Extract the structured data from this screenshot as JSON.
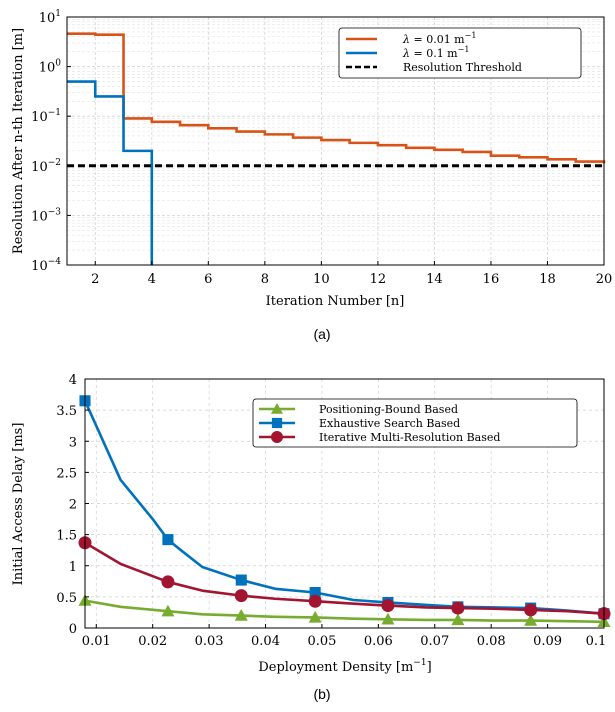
{
  "chart_data": [
    {
      "panel": "(a)",
      "type": "line",
      "step": true,
      "yscale": "log",
      "xlabel": "Iteration Number [n]",
      "ylabel": "Resolution After n-th Iteration [m]",
      "xlim": [
        1,
        20
      ],
      "ylim": [
        0.0001,
        10
      ],
      "xticks": [
        2,
        4,
        6,
        8,
        10,
        12,
        14,
        16,
        18,
        20
      ],
      "yticks": [
        {
          "value": 10,
          "base": "10",
          "exp": "1"
        },
        {
          "value": 1,
          "base": "10",
          "exp": "0"
        },
        {
          "value": 0.1,
          "base": "10",
          "exp": "−1"
        },
        {
          "value": 0.01,
          "base": "10",
          "exp": "−2"
        },
        {
          "value": 0.001,
          "base": "10",
          "exp": "−3"
        },
        {
          "value": 0.0001,
          "base": "10",
          "exp": "−4"
        }
      ],
      "grid": true,
      "legend_position": "top-right",
      "series": [
        {
          "name": "λ = 0.01 m⁻¹",
          "legend_parts": {
            "sym": "λ",
            "mid": " = 0.01 m",
            "sup": "−1"
          },
          "color": "#d95319",
          "x": [
            1,
            2,
            3,
            4,
            5,
            6,
            7,
            8,
            9,
            10,
            11,
            12,
            13,
            14,
            15,
            16,
            17,
            18,
            19,
            20
          ],
          "y": [
            4.6,
            4.4,
            0.09,
            0.077,
            0.066,
            0.057,
            0.049,
            0.043,
            0.037,
            0.033,
            0.029,
            0.026,
            0.023,
            0.021,
            0.019,
            0.016,
            0.0148,
            0.0135,
            0.0122,
            0.0112
          ]
        },
        {
          "name": "λ = 0.1 m⁻¹",
          "legend_parts": {
            "sym": "λ",
            "mid": " = 0.1 m",
            "sup": "−1"
          },
          "color": "#0072bd",
          "x": [
            1,
            2,
            3,
            4
          ],
          "y": [
            0.5,
            0.25,
            0.02,
            0.0001
          ]
        },
        {
          "name": "Resolution Threshold",
          "legend_parts": {
            "sym": "",
            "mid": "Resolution Threshold",
            "sup": ""
          },
          "color": "#000000",
          "dashed": true,
          "x": [
            1,
            20
          ],
          "y": [
            0.01,
            0.01
          ]
        }
      ],
      "caption": "(a)"
    },
    {
      "panel": "(b)",
      "type": "line",
      "xlabel": "Deployment Density [m⁻¹]",
      "xlabel_parts": {
        "main": "Deployment Density [m",
        "sup": "−1",
        "end": "]"
      },
      "ylabel": "Initial Access Delay [ms]",
      "xlim": [
        0.008,
        0.1
      ],
      "ylim": [
        0,
        4
      ],
      "xticks": [
        0.01,
        0.02,
        0.03,
        0.04,
        0.05,
        0.06,
        0.07,
        0.08,
        0.09,
        0.1
      ],
      "xtick_labels": [
        "0.01",
        "0.02",
        "0.03",
        "0.04",
        "0.05",
        "0.06",
        "0.07",
        "0.08",
        "0.09",
        "0.1"
      ],
      "yticks": [
        0,
        0.5,
        1,
        1.5,
        2,
        2.5,
        3,
        3.5,
        4
      ],
      "ytick_labels": [
        "0",
        "0.5",
        "1",
        "1.5",
        "2",
        "2.5",
        "3",
        "3.5",
        "4"
      ],
      "grid": true,
      "legend_position": "top-right",
      "series": [
        {
          "name": "Positioning-Bound Based",
          "color": "#77ac30",
          "marker": "triangle",
          "x": [
            0.008,
            0.0143,
            0.0227,
            0.0288,
            0.0357,
            0.0417,
            0.0488,
            0.0556,
            0.0617,
            0.0685,
            0.0741,
            0.0806,
            0.087,
            0.0935,
            0.1
          ],
          "y": [
            0.44,
            0.34,
            0.27,
            0.22,
            0.2,
            0.18,
            0.17,
            0.15,
            0.14,
            0.13,
            0.13,
            0.12,
            0.12,
            0.11,
            0.1
          ],
          "marker_x": [
            0.008,
            0.0227,
            0.0357,
            0.0488,
            0.0617,
            0.0741,
            0.087,
            0.1
          ]
        },
        {
          "name": "Exhaustive Search Based",
          "color": "#0072bd",
          "marker": "square",
          "x": [
            0.008,
            0.0143,
            0.02,
            0.0227,
            0.025,
            0.0288,
            0.0357,
            0.0417,
            0.0488,
            0.0556,
            0.0617,
            0.0685,
            0.0741,
            0.0806,
            0.087,
            0.0935,
            0.1
          ],
          "y": [
            3.65,
            2.38,
            1.75,
            1.42,
            1.25,
            0.98,
            0.77,
            0.63,
            0.57,
            0.45,
            0.41,
            0.37,
            0.34,
            0.33,
            0.32,
            0.28,
            0.23
          ],
          "marker_x": [
            0.008,
            0.0227,
            0.0357,
            0.0488,
            0.0617,
            0.0741,
            0.087,
            0.1
          ]
        },
        {
          "name": "Iterative Multi-Resolution Based",
          "color": "#a2142f",
          "marker": "circle",
          "x": [
            0.008,
            0.0143,
            0.0227,
            0.0288,
            0.0357,
            0.0417,
            0.0488,
            0.0556,
            0.0617,
            0.0685,
            0.0741,
            0.0806,
            0.087,
            0.0935,
            0.1
          ],
          "y": [
            1.37,
            1.03,
            0.74,
            0.6,
            0.52,
            0.47,
            0.43,
            0.39,
            0.36,
            0.33,
            0.32,
            0.31,
            0.29,
            0.27,
            0.23
          ],
          "marker_x": [
            0.008,
            0.0227,
            0.0357,
            0.0488,
            0.0617,
            0.0741,
            0.087,
            0.1
          ]
        }
      ],
      "caption": "(b)"
    }
  ]
}
